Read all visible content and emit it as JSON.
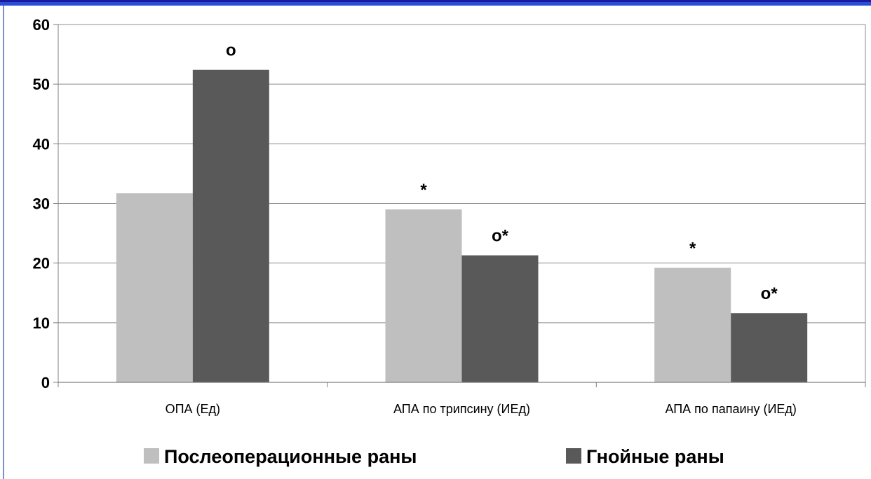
{
  "chart_data": {
    "type": "bar",
    "categories": [
      "ОПА (Ед)",
      "АПА по трипсину (ИЕд)",
      "АПА по папаину (ИЕд)"
    ],
    "series": [
      {
        "name": "Послеоперационные раны",
        "values": [
          31.7,
          29.0,
          19.2
        ],
        "color": "#bfbfbf",
        "annotations": [
          "",
          "*",
          "*"
        ]
      },
      {
        "name": "Гнойные раны",
        "values": [
          52.4,
          21.3,
          11.6
        ],
        "color": "#595959",
        "annotations": [
          "о",
          "о*",
          "о*"
        ]
      }
    ],
    "ylim": [
      0,
      60
    ],
    "yticks": [
      0,
      10,
      20,
      30,
      40,
      50,
      60
    ],
    "grid": true,
    "legend_position": "bottom"
  },
  "colors": {
    "frame_bar": "#2a4fd6",
    "gridline": "#8c8c8c"
  }
}
